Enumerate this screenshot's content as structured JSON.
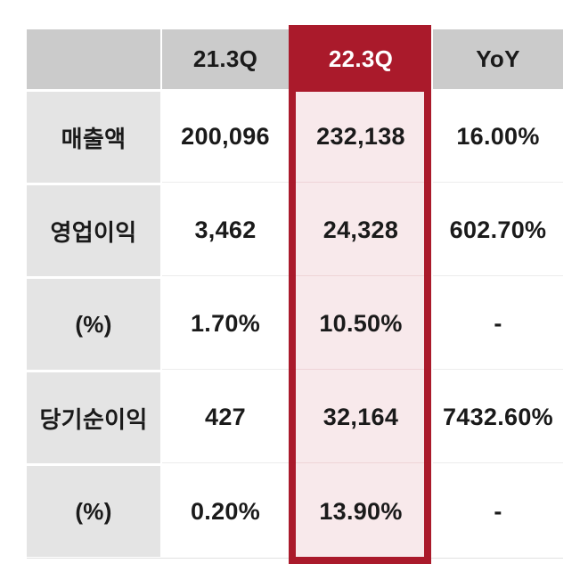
{
  "page": {
    "background": "#ffffff"
  },
  "table": {
    "corner_label": "",
    "columns": [
      "21.3Q",
      "22.3Q",
      "YoY"
    ],
    "highlighted_column": "22.3Q",
    "rows": [
      {
        "label": "매출액",
        "values": [
          "200,096",
          "232,138",
          "16.00%"
        ]
      },
      {
        "label": "영업이익",
        "values": [
          "3,462",
          "24,328",
          "602.70%"
        ]
      },
      {
        "label": "(%)",
        "values": [
          "1.70%",
          "10.50%",
          "-"
        ]
      },
      {
        "label": "당기순이익",
        "values": [
          "427",
          "32,164",
          "7432.60%"
        ]
      },
      {
        "label": "(%)",
        "values": [
          "0.20%",
          "13.90%",
          "-"
        ]
      }
    ],
    "colors": {
      "highlight_border": "#aa1a2b",
      "highlight_fill": "#f8e9eb",
      "header_bg": "#cbcbcb",
      "label_bg": "#e4e4e4",
      "text": "#1a1a1a",
      "highlight_header_text": "#ffffff",
      "row_line": "#ececec"
    }
  },
  "chart_data": {
    "type": "table",
    "columns": [
      "",
      "21.3Q",
      "22.3Q",
      "YoY"
    ],
    "rows": [
      [
        "매출액",
        "200,096",
        "232,138",
        "16.00%"
      ],
      [
        "영업이익",
        "3,462",
        "24,328",
        "602.70%"
      ],
      [
        "(%)",
        "1.70%",
        "10.50%",
        "-"
      ],
      [
        "당기순이익",
        "427",
        "32,164",
        "7432.60%"
      ],
      [
        "(%)",
        "0.20%",
        "13.90%",
        "-"
      ]
    ],
    "numeric_values": {
      "21.3Q": [
        200096,
        3462,
        1.7,
        427,
        0.2
      ],
      "22.3Q": [
        232138,
        24328,
        10.5,
        32164,
        13.9
      ],
      "YoY_percent": [
        16.0,
        602.7,
        null,
        7432.6,
        null
      ]
    },
    "highlighted_column": "22.3Q",
    "legend_position": "none",
    "grid": "light row separators"
  }
}
